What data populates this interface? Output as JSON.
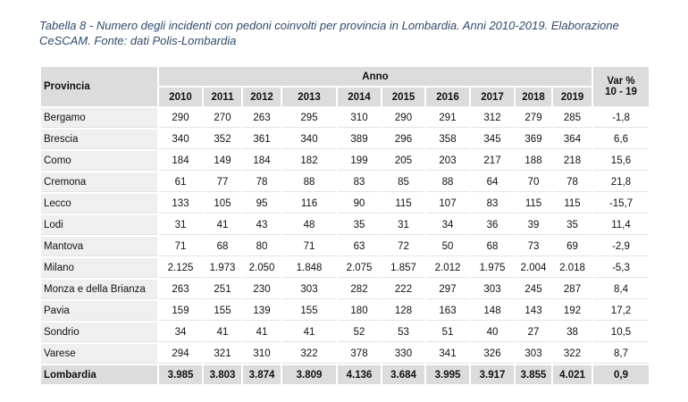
{
  "caption": "Tabella 8 - Numero degli incidenti con pedoni coinvolti per provincia in Lombardia. Anni 2010-2019. Elaborazione CeSCAM. Fonte: dati Polis-Lombardia",
  "header": {
    "province": "Provincia",
    "anno": "Anno",
    "var_line1": "Var %",
    "var_line2": "10 - 19",
    "years": [
      "2010",
      "2011",
      "2012",
      "2013",
      "2014",
      "2015",
      "2016",
      "2017",
      "2018",
      "2019"
    ]
  },
  "rows": [
    {
      "name": "Bergamo",
      "values": [
        "290",
        "270",
        "263",
        "295",
        "310",
        "290",
        "291",
        "312",
        "279",
        "285"
      ],
      "var": "-1,8"
    },
    {
      "name": "Brescia",
      "values": [
        "340",
        "352",
        "361",
        "340",
        "389",
        "296",
        "358",
        "345",
        "369",
        "364"
      ],
      "var": "6,6"
    },
    {
      "name": "Como",
      "values": [
        "184",
        "149",
        "184",
        "182",
        "199",
        "205",
        "203",
        "217",
        "188",
        "218"
      ],
      "var": "15,6"
    },
    {
      "name": "Cremona",
      "values": [
        "61",
        "77",
        "78",
        "88",
        "83",
        "85",
        "88",
        "64",
        "70",
        "78"
      ],
      "var": "21,8"
    },
    {
      "name": "Lecco",
      "values": [
        "133",
        "105",
        "95",
        "116",
        "90",
        "115",
        "107",
        "83",
        "115",
        "115"
      ],
      "var": "-15,7"
    },
    {
      "name": "Lodi",
      "values": [
        "31",
        "41",
        "43",
        "48",
        "35",
        "31",
        "34",
        "36",
        "39",
        "35"
      ],
      "var": "11,4"
    },
    {
      "name": "Mantova",
      "values": [
        "71",
        "68",
        "80",
        "71",
        "63",
        "72",
        "50",
        "68",
        "73",
        "69"
      ],
      "var": "-2,9"
    },
    {
      "name": "Milano",
      "values": [
        "2.125",
        "1.973",
        "2.050",
        "1.848",
        "2.075",
        "1.857",
        "2.012",
        "1.975",
        "2.004",
        "2.018"
      ],
      "var": "-5,3"
    },
    {
      "name": "Monza e della Brianza",
      "values": [
        "263",
        "251",
        "230",
        "303",
        "282",
        "222",
        "297",
        "303",
        "245",
        "287"
      ],
      "var": "8,4"
    },
    {
      "name": "Pavia",
      "values": [
        "159",
        "155",
        "139",
        "155",
        "180",
        "128",
        "163",
        "148",
        "143",
        "192"
      ],
      "var": "17,2"
    },
    {
      "name": "Sondrio",
      "values": [
        "34",
        "41",
        "41",
        "41",
        "52",
        "53",
        "51",
        "40",
        "27",
        "38"
      ],
      "var": "10,5"
    },
    {
      "name": "Varese",
      "values": [
        "294",
        "321",
        "310",
        "322",
        "378",
        "330",
        "341",
        "326",
        "303",
        "322"
      ],
      "var": "8,7"
    }
  ],
  "total": {
    "name": "Lombardia",
    "values": [
      "3.985",
      "3.803",
      "3.874",
      "3.809",
      "4.136",
      "3.684",
      "3.995",
      "3.917",
      "3.855",
      "4.021"
    ],
    "var": "0,9"
  }
}
